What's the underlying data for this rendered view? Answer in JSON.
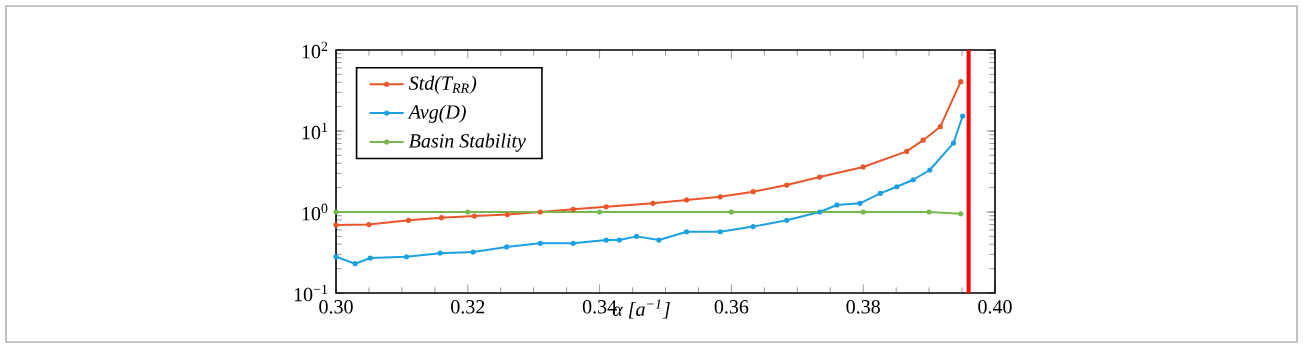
{
  "chart_data": {
    "type": "line",
    "xlabel": "α [a$^{−1}$]",
    "log": "y",
    "xlim": [
      0.3,
      0.4
    ],
    "ylim": [
      0.1,
      100
    ],
    "xticks": [
      {
        "value": 0.3,
        "label": "0.30"
      },
      {
        "value": 0.32,
        "label": "0.32"
      },
      {
        "value": 0.34,
        "label": "0.34"
      },
      {
        "value": 0.36,
        "label": "0.36"
      },
      {
        "value": 0.38,
        "label": "0.38"
      },
      {
        "value": 0.4,
        "label": "0.40"
      }
    ],
    "yticks": [
      {
        "value": 0.1,
        "label": "10$^{−1}$"
      },
      {
        "value": 1,
        "label": "10$^{0}$"
      },
      {
        "value": 10,
        "label": "10$^{1}$"
      },
      {
        "value": 100,
        "label": "10$^{2}$"
      }
    ],
    "legend": "top left",
    "marker": "circle",
    "line_style": "solid",
    "series": [
      {
        "name": "Std(T$_{RR}$)",
        "color": "#e8562a",
        "x": [
          0.3,
          0.305,
          0.311,
          0.316,
          0.321,
          0.326,
          0.331,
          0.336,
          0.341,
          0.3481,
          0.3532,
          0.3583,
          0.3633,
          0.3684,
          0.3734,
          0.38,
          0.3866,
          0.3891,
          0.3917,
          0.3948
        ],
        "values": [
          0.69,
          0.7,
          0.79,
          0.85,
          0.89,
          0.93,
          1.0,
          1.08,
          1.16,
          1.28,
          1.41,
          1.54,
          1.78,
          2.15,
          2.7,
          3.6,
          5.6,
          7.7,
          11.3,
          40.6
        ]
      },
      {
        "name": "Avg(D)",
        "color": "#1ba1e2",
        "x": [
          0.3,
          0.3029,
          0.3052,
          0.3107,
          0.3158,
          0.3208,
          0.3259,
          0.331,
          0.336,
          0.341,
          0.343,
          0.3456,
          0.349,
          0.3532,
          0.3583,
          0.3633,
          0.3684,
          0.3734,
          0.376,
          0.3795,
          0.3826,
          0.3851,
          0.3876,
          0.3901,
          0.3937,
          0.3951
        ],
        "values": [
          0.28,
          0.23,
          0.27,
          0.28,
          0.31,
          0.32,
          0.37,
          0.41,
          0.41,
          0.45,
          0.45,
          0.5,
          0.45,
          0.57,
          0.57,
          0.66,
          0.79,
          1.0,
          1.22,
          1.28,
          1.7,
          2.05,
          2.5,
          3.3,
          7.1,
          15.3
        ]
      },
      {
        "name": "Basin Stability",
        "color": "#77b84e",
        "x": [
          0.3,
          0.32,
          0.34,
          0.36,
          0.38,
          0.39,
          0.3948
        ],
        "values": [
          1.0,
          1.0,
          1.0,
          1.0,
          1.0,
          1.0,
          0.95
        ]
      }
    ],
    "ref_lines": [
      {
        "axis": "x",
        "value": 0.396,
        "label": null,
        "color": "#ff0000"
      }
    ]
  }
}
